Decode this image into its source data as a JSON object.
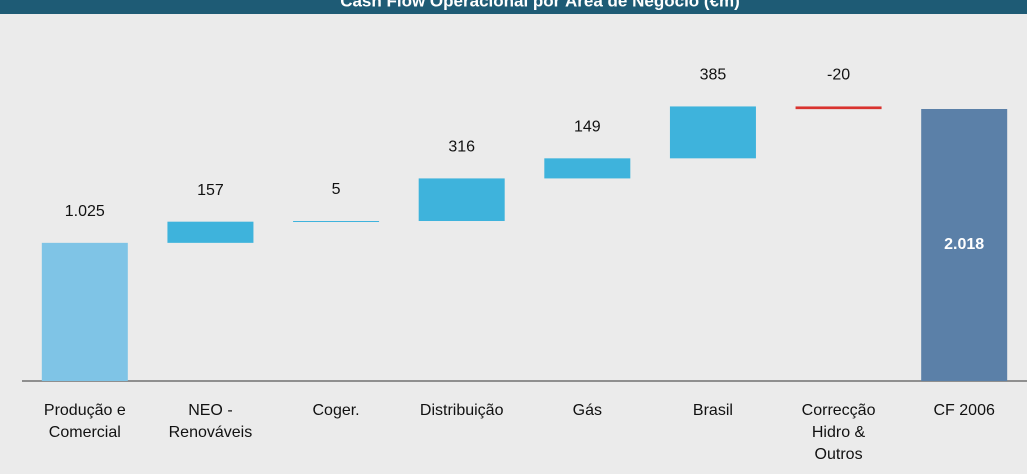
{
  "chart_data": {
    "type": "waterfall",
    "title": "Cash Flow Operacional por Área de Negócio (€m)",
    "categories": [
      "Produção e\nComercial",
      "NEO -\nRenováveis",
      "Coger.",
      "Distribuição",
      "Gás",
      "Brasil",
      "Correcção\nHidro &\nOutros",
      "CF 2006"
    ],
    "values": [
      1025,
      157,
      5,
      316,
      149,
      385,
      -20,
      2018
    ],
    "value_labels": [
      "1.025",
      "157",
      "5",
      "316",
      "149",
      "385",
      "-20",
      "2.018"
    ],
    "colors": {
      "start": "#7fc4e6",
      "increase": "#3eb3dc",
      "decrease": "#d9332f",
      "total": "#5b80a8"
    }
  }
}
